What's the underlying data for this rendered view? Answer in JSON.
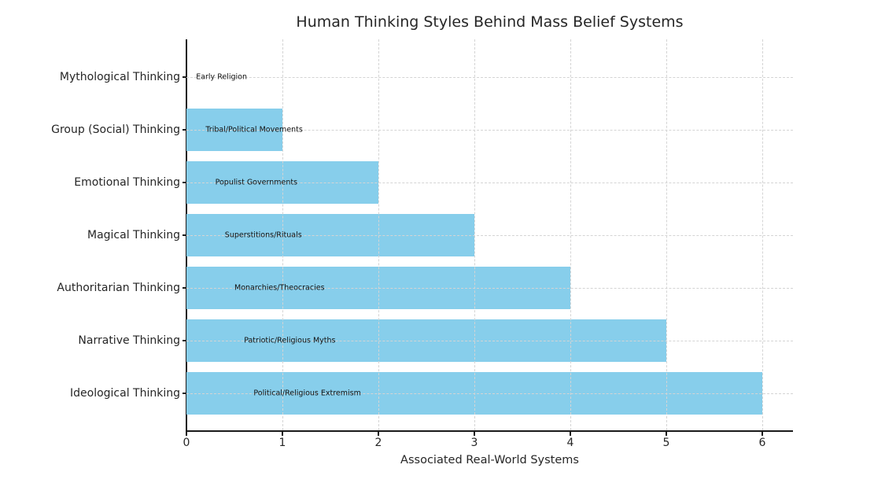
{
  "chart_data": {
    "type": "bar",
    "orientation": "horizontal",
    "title": "Human Thinking Styles Behind Mass Belief Systems",
    "xlabel": "Associated Real-World Systems",
    "ylabel": "",
    "categories": [
      "Mythological Thinking",
      "Group (Social) Thinking",
      "Emotional Thinking",
      "Magical Thinking",
      "Authoritarian Thinking",
      "Narrative Thinking",
      "Ideological Thinking"
    ],
    "values": [
      0,
      1,
      2,
      3,
      4,
      5,
      6
    ],
    "bar_labels": [
      "Early Religion",
      "Tribal/Political Movements",
      "Populist Governments",
      "Superstitions/Rituals",
      "Monarchies/Theocracies",
      "Patriotic/Religious Myths",
      "Political/Religious Extremism"
    ],
    "x_ticks": [
      0,
      1,
      2,
      3,
      4,
      5,
      6
    ],
    "xlim": [
      0,
      6.32
    ],
    "bar_color": "#87CEEB",
    "grid_style": "dashed",
    "grid_color": "#d4d4d4",
    "grid_above_bars": true,
    "legend": "none"
  }
}
